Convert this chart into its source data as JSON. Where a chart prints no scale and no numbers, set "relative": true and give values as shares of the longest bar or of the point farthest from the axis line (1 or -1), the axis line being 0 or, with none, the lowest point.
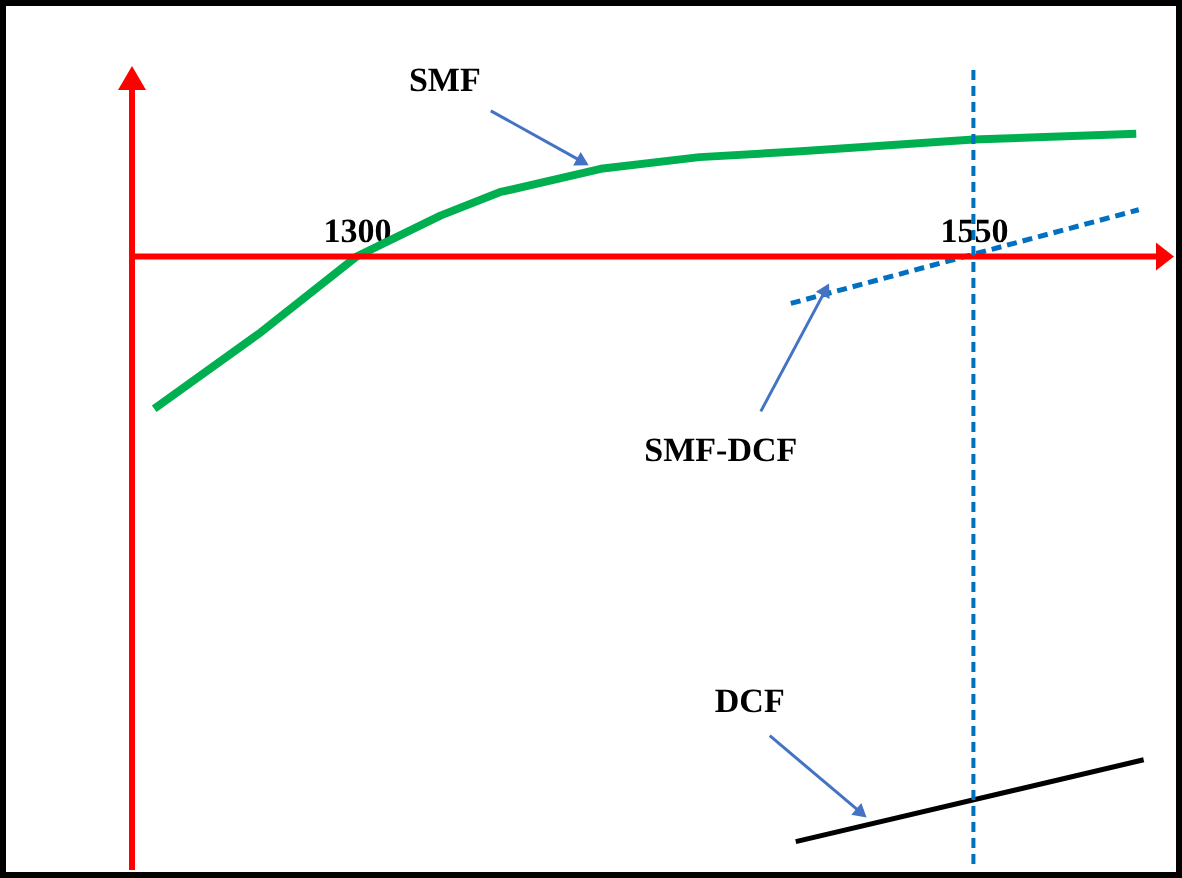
{
  "chart_data": {
    "type": "line",
    "relative": true,
    "xlim": [
      1209,
      1624
    ],
    "xticks": [
      1300,
      1550
    ],
    "series": [
      {
        "name": "SMF",
        "color": "#00b050",
        "line_style": "solid",
        "x": [
          1218,
          1261,
          1300,
          1334,
          1358,
          1399,
          1439,
          1480,
          1550,
          1616
        ],
        "values": [
          -0.26,
          -0.13,
          0,
          0.07,
          0.11,
          0.15,
          0.17,
          0.18,
          0.2,
          0.21
        ]
      },
      {
        "name": "SMF-DCF",
        "color": "#0070c0",
        "line_style": "dashed",
        "x": [
          1476,
          1617
        ],
        "values": [
          -0.08,
          0.08
        ]
      },
      {
        "name": "DCF",
        "color": "#000000",
        "line_style": "solid",
        "x": [
          1478,
          1619
        ],
        "values": [
          -1.0,
          -0.86
        ]
      }
    ],
    "ref_lines": [
      {
        "axis": "x",
        "value": 1550,
        "color": "#0070c0",
        "line_style": "dashed"
      }
    ]
  }
}
